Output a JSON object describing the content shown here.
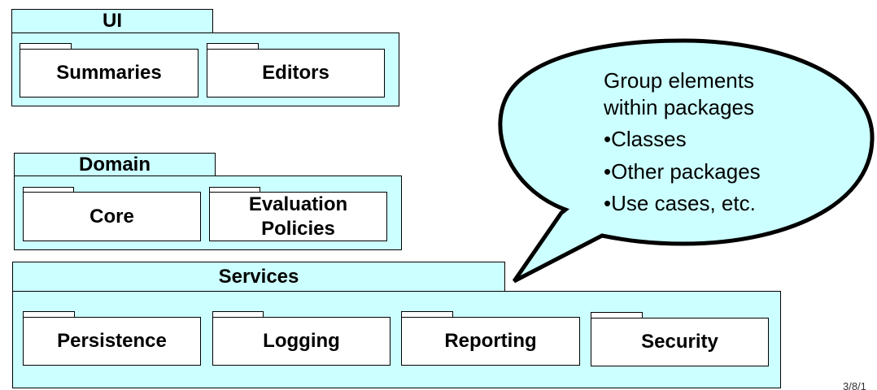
{
  "packages": {
    "ui": {
      "title": "UI",
      "subs": [
        "Summaries",
        "Editors"
      ]
    },
    "domain": {
      "title": "Domain",
      "subs": [
        "Core",
        "Evaluation Policies"
      ]
    },
    "services": {
      "title": "Services",
      "subs": [
        "Persistence",
        "Logging",
        "Reporting",
        "Security"
      ]
    }
  },
  "callout": {
    "line1": "Group elements",
    "line2": "within packages",
    "bullets": [
      "•Classes",
      "•Other packages",
      "•Use cases, etc."
    ]
  },
  "footer": {
    "date": "3/8/1"
  },
  "colors": {
    "package_fill": "#ccffff",
    "outline": "#000000",
    "sub_fill": "#ffffff"
  }
}
